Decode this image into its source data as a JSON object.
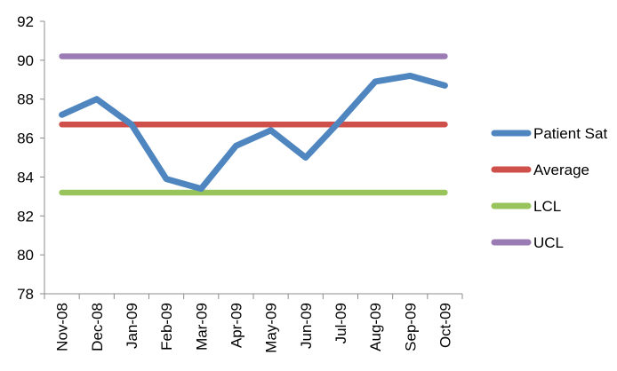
{
  "chart_data": {
    "type": "line",
    "title": "",
    "xlabel": "",
    "ylabel": "",
    "categories": [
      "Nov-08",
      "Dec-08",
      "Jan-09",
      "Feb-09",
      "Mar-09",
      "Apr-09",
      "May-09",
      "Jun-09",
      "Jul-09",
      "Aug-09",
      "Sep-09",
      "Oct-09"
    ],
    "ylim": [
      78,
      92
    ],
    "yticks": [
      78,
      80,
      82,
      84,
      86,
      88,
      90,
      92
    ],
    "grid": false,
    "legend_position": "right",
    "series": [
      {
        "name": "Patient Sat",
        "color": "#4f86c0",
        "values": [
          87.2,
          88.0,
          86.7,
          83.9,
          83.4,
          85.6,
          86.4,
          85.0,
          86.9,
          88.9,
          89.2,
          88.7
        ]
      },
      {
        "name": "Average",
        "color": "#cf4f4b",
        "values": [
          86.7,
          86.7,
          86.7,
          86.7,
          86.7,
          86.7,
          86.7,
          86.7,
          86.7,
          86.7,
          86.7,
          86.7
        ]
      },
      {
        "name": "LCL",
        "color": "#99c35b",
        "values": [
          83.2,
          83.2,
          83.2,
          83.2,
          83.2,
          83.2,
          83.2,
          83.2,
          83.2,
          83.2,
          83.2,
          83.2
        ]
      },
      {
        "name": "UCL",
        "color": "#9b7bb3",
        "values": [
          90.2,
          90.2,
          90.2,
          90.2,
          90.2,
          90.2,
          90.2,
          90.2,
          90.2,
          90.2,
          90.2,
          90.2
        ]
      }
    ]
  }
}
